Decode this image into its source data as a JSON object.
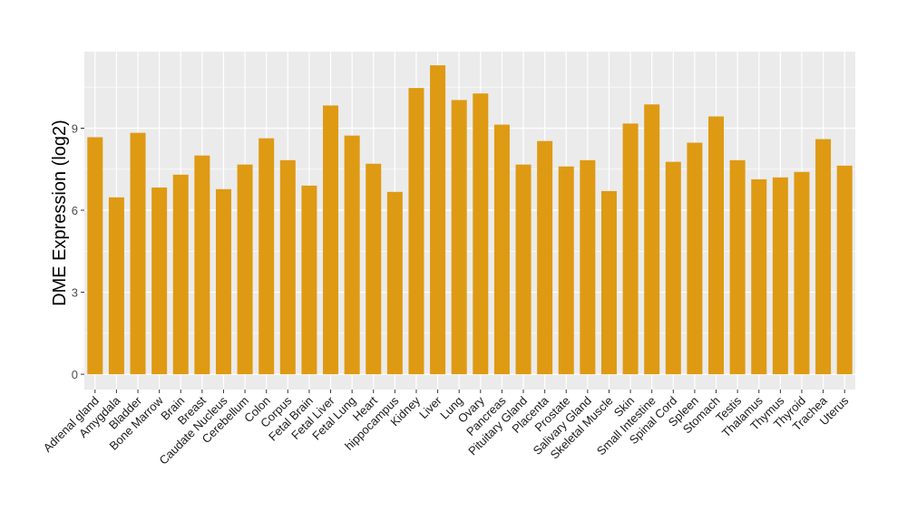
{
  "chart_data": {
    "type": "bar",
    "title": "",
    "xlabel": "",
    "ylabel": "DME Expression (log2)",
    "ylim": [
      -0.56,
      11.8
    ],
    "yticks": [
      0,
      3,
      6,
      9
    ],
    "grid": true,
    "bar_color": "#DE9A13",
    "panel_color": "#EBEBEB",
    "categories": [
      "Adrenal gland",
      "Amygdala",
      "Bladder",
      "Bone Marrow",
      "Brain",
      "Breast",
      "Caudate Nucleus",
      "Cerebellum",
      "Colon",
      "Corpus",
      "Fetal Brain",
      "Fetal Liver",
      "Fetal Lung",
      "Heart",
      "hippocampus",
      "Kidney",
      "Liver",
      "Lung",
      "Ovary",
      "Pancreas",
      "Pituitary Gland",
      "Placenta",
      "Prostate",
      "Salivary Gland",
      "Skeletal Muscle",
      "Skin",
      "Small Intestine",
      "Spinal Cord",
      "Spleen",
      "Stomach",
      "Testis",
      "Thalamus",
      "Thymus",
      "Thyroid",
      "Trachea",
      "Uterus"
    ],
    "values": [
      8.67,
      6.47,
      8.83,
      6.83,
      7.3,
      8.0,
      6.77,
      7.67,
      8.63,
      7.83,
      6.9,
      9.83,
      8.73,
      7.7,
      6.67,
      10.47,
      11.3,
      10.03,
      10.27,
      9.13,
      7.67,
      8.53,
      7.6,
      7.83,
      6.7,
      9.17,
      9.87,
      7.77,
      8.47,
      9.43,
      7.83,
      7.13,
      7.2,
      7.4,
      8.6,
      7.63
    ]
  }
}
